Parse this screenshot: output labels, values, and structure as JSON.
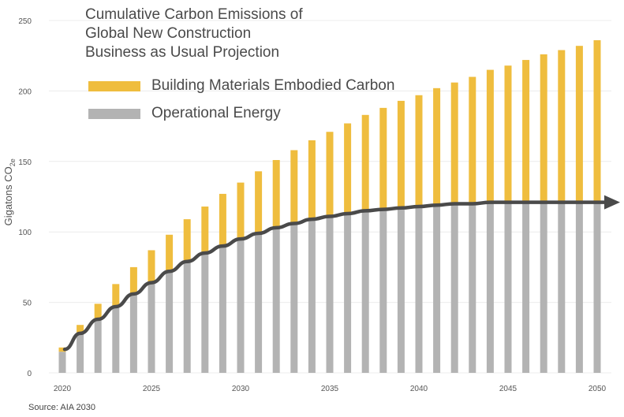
{
  "chart_data": {
    "type": "bar",
    "stacked": true,
    "title_lines": [
      "Cumulative Carbon Emissions of",
      "Global New Construction",
      "Business as Usual Projection"
    ],
    "ylabel": {
      "text": "Gigatons CO",
      "subscript": "2e"
    },
    "ylim": [
      0,
      250
    ],
    "yticks": [
      "0",
      "50",
      "100",
      "150",
      "200",
      "250"
    ],
    "xticks": [
      "2020",
      "2025",
      "2030",
      "2035",
      "2040",
      "2045",
      "2050"
    ],
    "grid": "horizontal",
    "legend_position": "top-left",
    "categories": [
      2020,
      2021,
      2022,
      2023,
      2024,
      2025,
      2026,
      2027,
      2028,
      2029,
      2030,
      2031,
      2032,
      2033,
      2034,
      2035,
      2036,
      2037,
      2038,
      2039,
      2040,
      2041,
      2042,
      2043,
      2044,
      2045,
      2046,
      2047,
      2048,
      2049,
      2050
    ],
    "series": [
      {
        "name": "Operational Energy",
        "color": "#b3b3b3",
        "values": [
          15,
          28,
          38,
          47,
          56,
          64,
          72,
          79,
          85,
          90,
          95,
          99,
          103,
          106,
          109,
          111,
          113,
          115,
          116,
          117,
          118,
          119,
          120,
          120,
          121,
          121,
          121,
          121,
          121,
          121,
          121
        ]
      },
      {
        "name": "Building Materials Embodied Carbon",
        "color": "#efbd3e",
        "values": [
          3,
          6,
          11,
          16,
          19,
          23,
          26,
          30,
          33,
          37,
          40,
          44,
          48,
          52,
          56,
          60,
          64,
          68,
          72,
          76,
          79,
          83,
          86,
          90,
          94,
          97,
          101,
          105,
          108,
          111,
          115
        ]
      }
    ],
    "trend_line": {
      "color": "#4a4a4a",
      "label": ""
    },
    "source": "Source: AIA 2030"
  }
}
